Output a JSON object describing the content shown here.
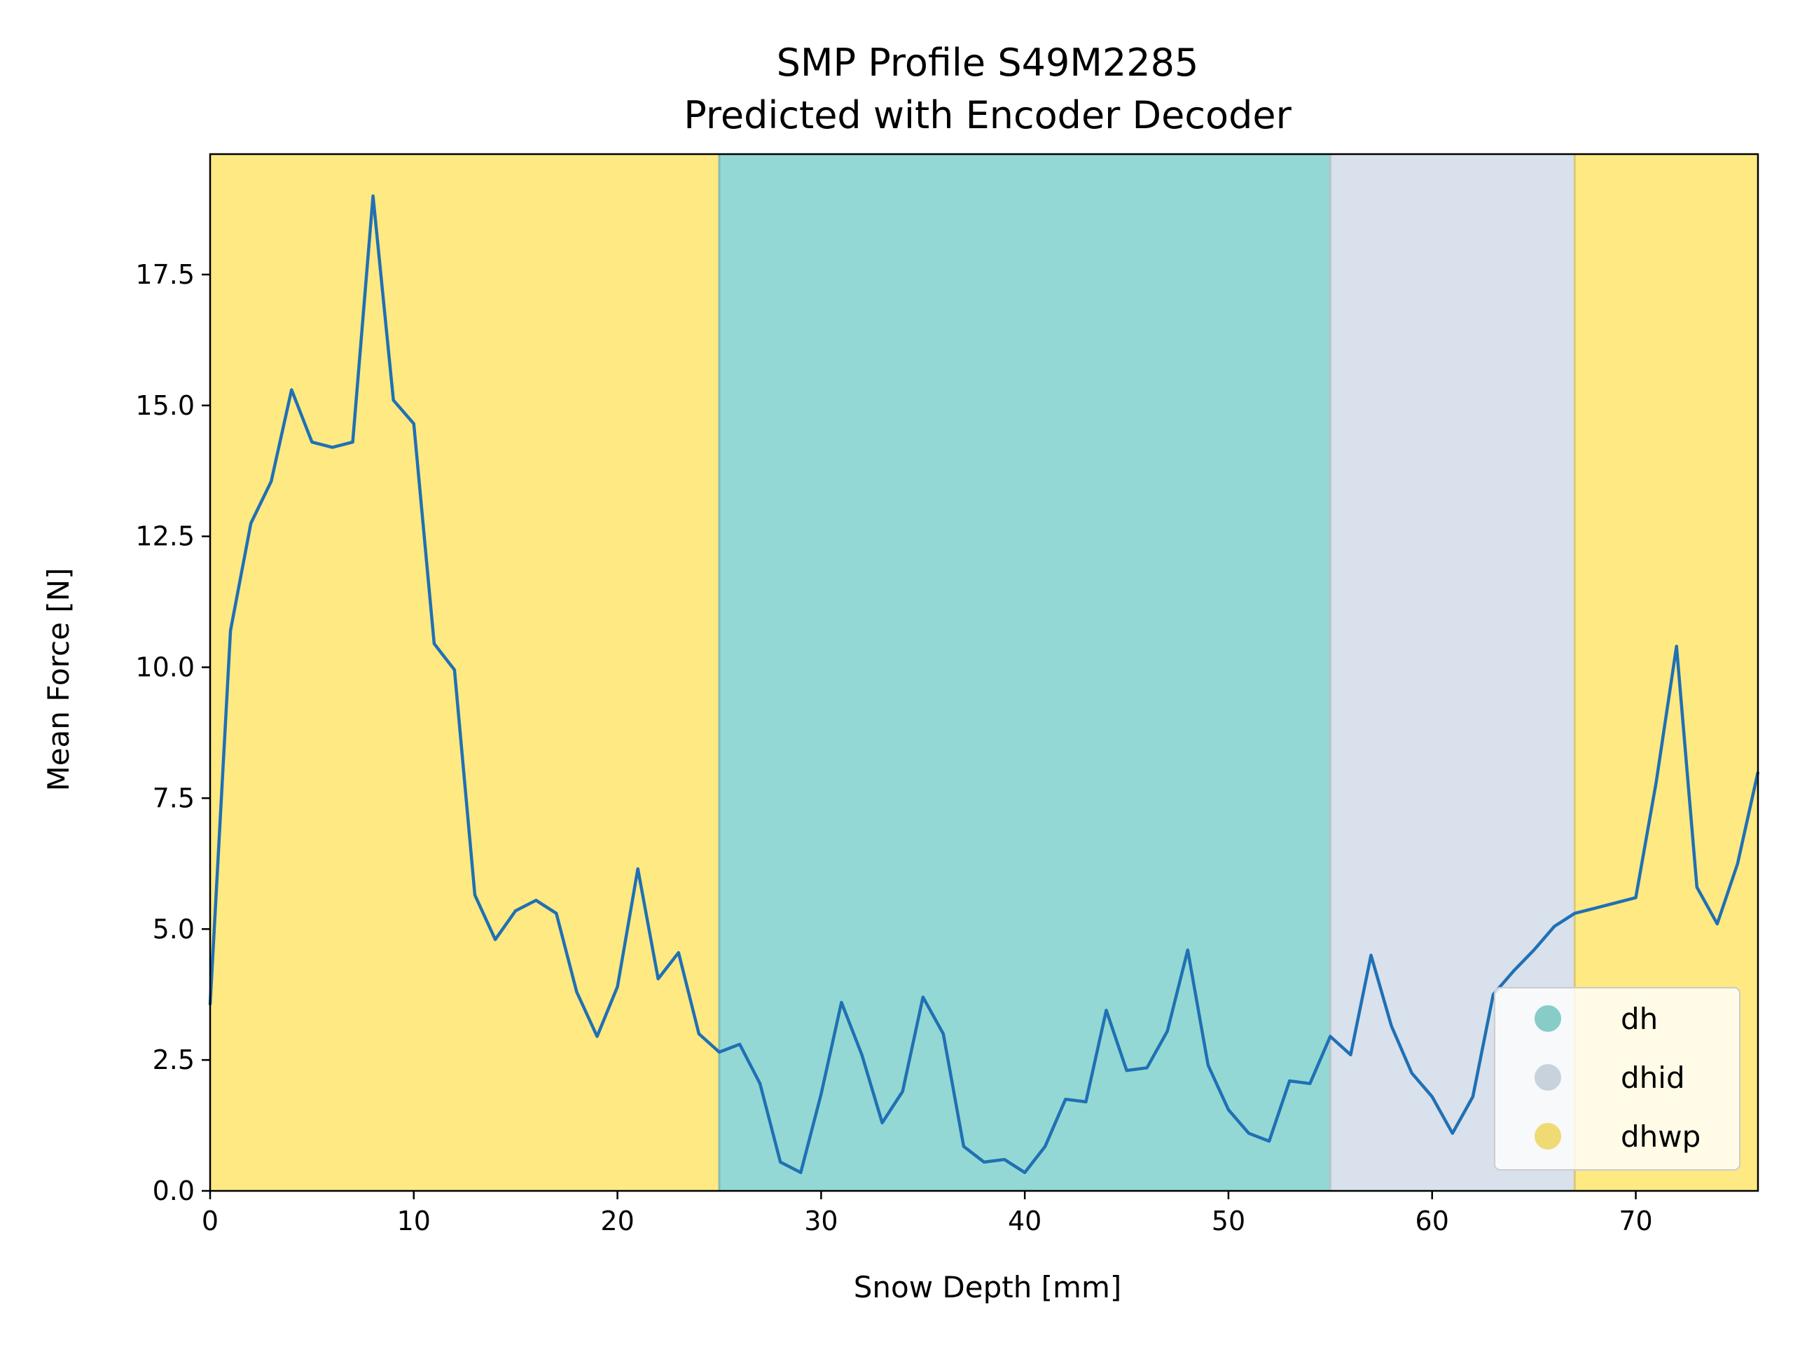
{
  "chart_data": {
    "type": "line",
    "title": "SMP Profile S49M2285",
    "subtitle": "Predicted with Encoder Decoder",
    "xlabel": "Snow Depth [mm]",
    "ylabel": "Mean Force [N]",
    "xlim": [
      0,
      76
    ],
    "ylim": [
      0,
      19.8
    ],
    "xticks": [
      0,
      10,
      20,
      30,
      40,
      50,
      60,
      70
    ],
    "yticks": [
      0.0,
      2.5,
      5.0,
      7.5,
      10.0,
      12.5,
      15.0,
      17.5
    ],
    "xtick_labels": [
      "0",
      "10",
      "20",
      "30",
      "40",
      "50",
      "60",
      "70"
    ],
    "ytick_labels": [
      "0.0",
      "2.5",
      "5.0",
      "7.5",
      "10.0",
      "12.5",
      "15.0",
      "17.5"
    ],
    "grid": false,
    "legend_position": "bottom-right",
    "line_color": "#2070b4",
    "regions": [
      {
        "label": "dhwp",
        "start": 0,
        "end": 25
      },
      {
        "label": "dh",
        "start": 25,
        "end": 55
      },
      {
        "label": "dhid",
        "start": 55,
        "end": 67
      },
      {
        "label": "dhwp",
        "start": 67,
        "end": 76
      }
    ],
    "legend": [
      {
        "label": "dh",
        "color": "#8fd7d2"
      },
      {
        "label": "dhid",
        "color": "#d2dde9"
      },
      {
        "label": "dhwp",
        "color": "#fde57a"
      }
    ],
    "region_colors": {
      "dh": "#93d8d4",
      "dhid": "#d8e1ec",
      "dhwp": "#fee983"
    },
    "series": [
      {
        "x": [
          0,
          1,
          2,
          3,
          4,
          5,
          6,
          7,
          8,
          9,
          10,
          11,
          12,
          13,
          14,
          15,
          16,
          17,
          18,
          19,
          20,
          21,
          22,
          23,
          24,
          25,
          26,
          27,
          28,
          29,
          30,
          31,
          32,
          33,
          34,
          35,
          36,
          37,
          38,
          39,
          40,
          41,
          42,
          43,
          44,
          45,
          46,
          47,
          48,
          49,
          50,
          51,
          52,
          53,
          54,
          55,
          56,
          57,
          58,
          59,
          60,
          61,
          62,
          63,
          64,
          65,
          66,
          67,
          68,
          69,
          70,
          71,
          72,
          73,
          74,
          75,
          76
        ],
        "values": [
          3.55,
          10.7,
          12.75,
          13.55,
          15.3,
          14.3,
          14.2,
          14.3,
          19.0,
          15.1,
          14.65,
          10.45,
          9.95,
          5.65,
          4.8,
          5.35,
          5.55,
          5.3,
          3.8,
          2.95,
          3.9,
          6.15,
          4.05,
          4.55,
          3.0,
          2.65,
          2.8,
          2.05,
          0.55,
          0.35,
          1.85,
          3.6,
          2.6,
          1.3,
          1.9,
          3.7,
          3.0,
          0.85,
          0.55,
          0.6,
          0.35,
          0.85,
          1.75,
          1.7,
          3.45,
          2.3,
          2.35,
          3.05,
          4.6,
          2.4,
          1.55,
          1.1,
          0.95,
          2.1,
          2.05,
          2.95,
          2.6,
          4.5,
          3.15,
          2.25,
          1.8,
          1.1,
          1.8,
          3.75,
          4.2,
          4.6,
          5.05,
          5.3,
          5.4,
          5.5,
          5.6,
          7.8,
          10.4,
          5.8,
          5.1,
          6.25,
          8.0
        ]
      }
    ]
  }
}
